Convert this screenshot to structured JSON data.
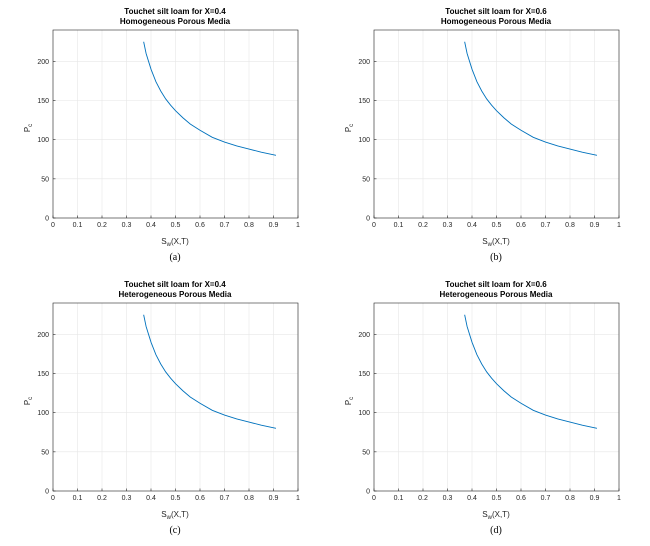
{
  "chart_data": [
    {
      "type": "line",
      "title": "Touchet silt loam for X=0.4",
      "subtitle": "Homogeneous Porous Media",
      "ylabel": "P",
      "ylabel_sub": "c",
      "xlabel": "S",
      "xlabel_sub": "w",
      "xlabel_suffix": "(X,T)",
      "xlim": [
        0,
        1
      ],
      "ylim": [
        0,
        240
      ],
      "xticks": [
        0,
        0.1,
        0.2,
        0.3,
        0.4,
        0.5,
        0.6,
        0.7,
        0.8,
        0.9,
        1
      ],
      "xtick_labels": [
        "0",
        "0.1",
        "0.2",
        "0.3",
        "0.4",
        "0.5",
        "0.6",
        "0.7",
        "0.8",
        "0.9",
        "1"
      ],
      "yticks": [
        0,
        50,
        100,
        150,
        200
      ],
      "ytick_labels": [
        "0",
        "50",
        "100",
        "150",
        "200"
      ],
      "grid": true,
      "color": "#0072bd",
      "x": [
        0.37,
        0.38,
        0.4,
        0.42,
        0.44,
        0.46,
        0.48,
        0.5,
        0.53,
        0.56,
        0.6,
        0.65,
        0.7,
        0.75,
        0.8,
        0.85,
        0.91
      ],
      "y": [
        225,
        210,
        190,
        174,
        162,
        152,
        144,
        137,
        128,
        120,
        112,
        103,
        97,
        92,
        88,
        84,
        80
      ],
      "caption": "(a)"
    },
    {
      "type": "line",
      "title": "Touchet silt loam for X=0.6",
      "subtitle": "Homogeneous Porous Media",
      "ylabel": "P",
      "ylabel_sub": "c",
      "xlabel": "S",
      "xlabel_sub": "w",
      "xlabel_suffix": "(X,T)",
      "xlim": [
        0,
        1
      ],
      "ylim": [
        0,
        240
      ],
      "xticks": [
        0,
        0.1,
        0.2,
        0.3,
        0.4,
        0.5,
        0.6,
        0.7,
        0.8,
        0.9,
        1
      ],
      "xtick_labels": [
        "0",
        "0.1",
        "0.2",
        "0.3",
        "0.4",
        "0.5",
        "0.6",
        "0.7",
        "0.8",
        "0.9",
        "1"
      ],
      "yticks": [
        0,
        50,
        100,
        150,
        200
      ],
      "ytick_labels": [
        "0",
        "50",
        "100",
        "150",
        "200"
      ],
      "grid": true,
      "color": "#0072bd",
      "x": [
        0.37,
        0.38,
        0.4,
        0.42,
        0.44,
        0.46,
        0.48,
        0.5,
        0.53,
        0.56,
        0.6,
        0.65,
        0.7,
        0.75,
        0.8,
        0.85,
        0.91
      ],
      "y": [
        225,
        210,
        190,
        174,
        162,
        152,
        144,
        137,
        128,
        120,
        112,
        103,
        97,
        92,
        88,
        84,
        80
      ],
      "caption": "(b)"
    },
    {
      "type": "line",
      "title": "Touchet silt loam for X=0.4",
      "subtitle": "Heterogeneous Porous Media",
      "ylabel": "P",
      "ylabel_sub": "c",
      "xlabel": "S",
      "xlabel_sub": "w",
      "xlabel_suffix": "(X,T)",
      "xlim": [
        0,
        1
      ],
      "ylim": [
        0,
        240
      ],
      "xticks": [
        0,
        0.1,
        0.2,
        0.3,
        0.4,
        0.5,
        0.6,
        0.7,
        0.8,
        0.9,
        1
      ],
      "xtick_labels": [
        "0",
        "0.1",
        "0.2",
        "0.3",
        "0.4",
        "0.5",
        "0.6",
        "0.7",
        "0.8",
        "0.9",
        "1"
      ],
      "yticks": [
        0,
        50,
        100,
        150,
        200
      ],
      "ytick_labels": [
        "0",
        "50",
        "100",
        "150",
        "200"
      ],
      "grid": true,
      "color": "#0072bd",
      "x": [
        0.37,
        0.38,
        0.4,
        0.42,
        0.44,
        0.46,
        0.48,
        0.5,
        0.53,
        0.56,
        0.6,
        0.65,
        0.7,
        0.75,
        0.8,
        0.85,
        0.91
      ],
      "y": [
        225,
        210,
        190,
        174,
        162,
        152,
        144,
        137,
        128,
        120,
        112,
        103,
        97,
        92,
        88,
        84,
        80
      ],
      "caption": "(c)"
    },
    {
      "type": "line",
      "title": "Touchet silt loam for X=0.6",
      "subtitle": "Heterogeneous Porous Media",
      "ylabel": "P",
      "ylabel_sub": "c",
      "xlabel": "S",
      "xlabel_sub": "w",
      "xlabel_suffix": "(X,T)",
      "xlim": [
        0,
        1
      ],
      "ylim": [
        0,
        240
      ],
      "xticks": [
        0,
        0.1,
        0.2,
        0.3,
        0.4,
        0.5,
        0.6,
        0.7,
        0.8,
        0.9,
        1
      ],
      "xtick_labels": [
        "0",
        "0.1",
        "0.2",
        "0.3",
        "0.4",
        "0.5",
        "0.6",
        "0.7",
        "0.8",
        "0.9",
        "1"
      ],
      "yticks": [
        0,
        50,
        100,
        150,
        200
      ],
      "ytick_labels": [
        "0",
        "50",
        "100",
        "150",
        "200"
      ],
      "grid": true,
      "color": "#0072bd",
      "x": [
        0.37,
        0.38,
        0.4,
        0.42,
        0.44,
        0.46,
        0.48,
        0.5,
        0.53,
        0.56,
        0.6,
        0.65,
        0.7,
        0.75,
        0.8,
        0.85,
        0.91
      ],
      "y": [
        225,
        210,
        190,
        174,
        162,
        152,
        144,
        137,
        128,
        120,
        112,
        103,
        97,
        92,
        88,
        84,
        80
      ],
      "caption": "(d)"
    }
  ]
}
